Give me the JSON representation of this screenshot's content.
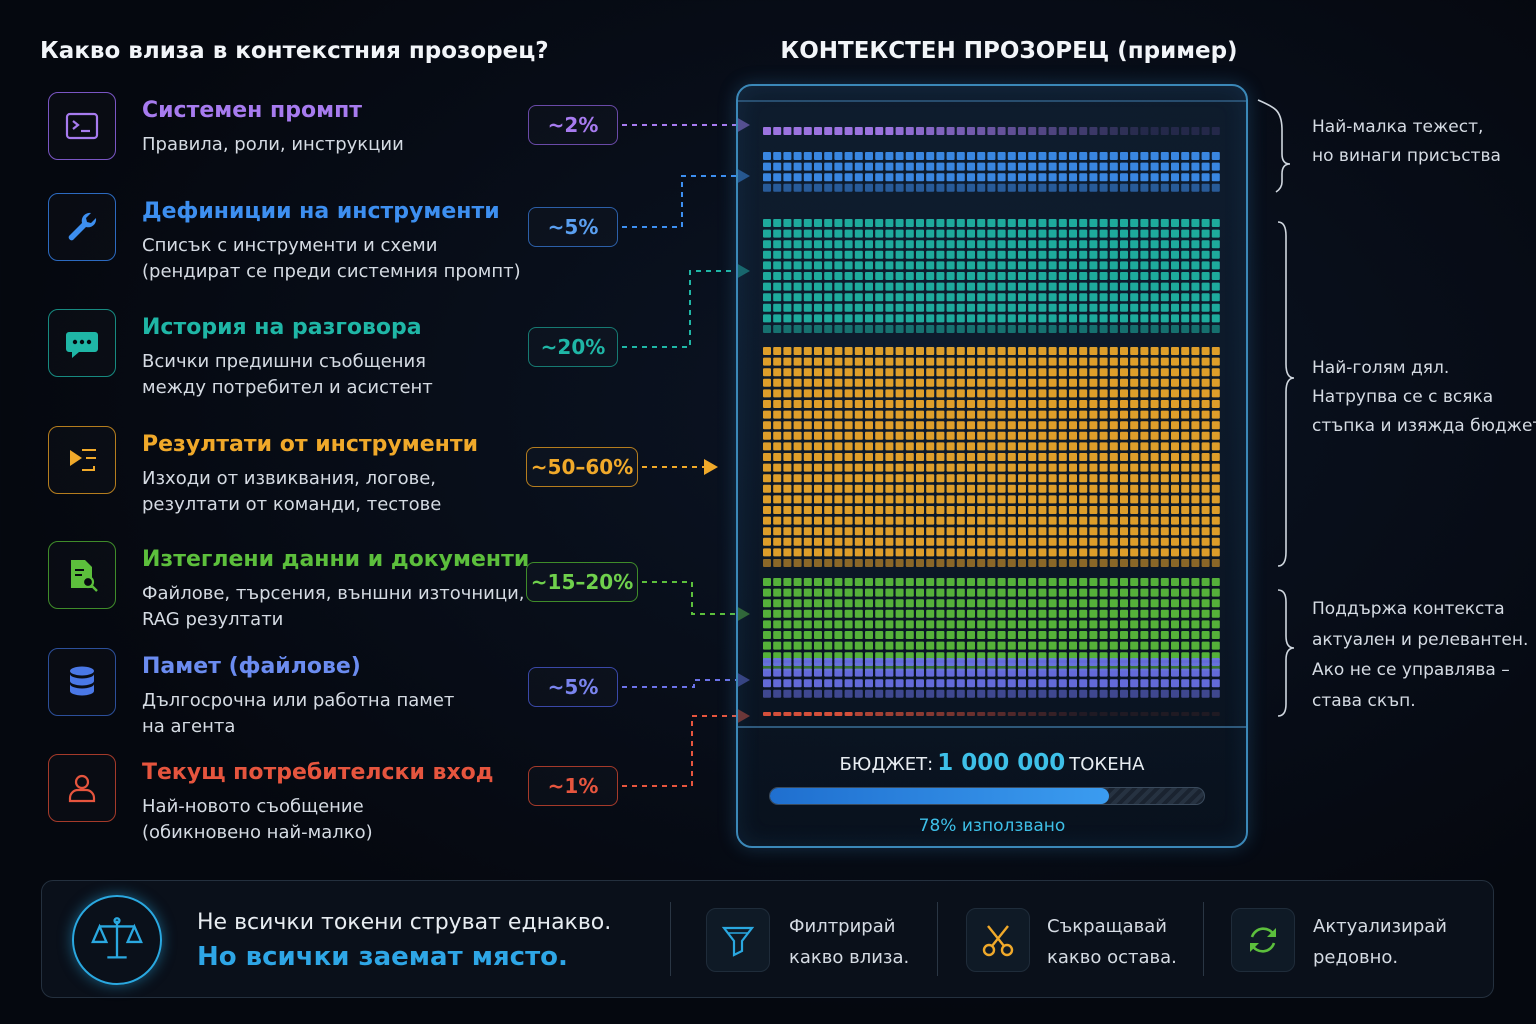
{
  "left_title": "Какво влиза в контекстния прозорец?",
  "window_title": "КОНТЕКСТЕН ПРОЗОРЕЦ (пример)",
  "items": [
    {
      "title": "Системен промпт",
      "desc": [
        "Правила, роли, инструкции"
      ],
      "pct": "~2%",
      "color": "#a77bef",
      "icon": "terminal-icon"
    },
    {
      "title": "Дефиниции на инструменти",
      "desc": [
        "Списък с инструменти и схеми",
        "(рендират се преди системния промпт)"
      ],
      "pct": "~5%",
      "color": "#3d8ff0",
      "icon": "wrench-icon"
    },
    {
      "title": "История на разговора",
      "desc": [
        "Всички предишни съобщения",
        "между потребител и асистент"
      ],
      "pct": "~20%",
      "color": "#1fb6a6",
      "icon": "chat-icon"
    },
    {
      "title": "Резултати от инструменти",
      "desc": [
        "Изходи от извиквания, логове,",
        "резултати от команди, тестове"
      ],
      "pct": "~50–60%",
      "color": "#f0a92a",
      "icon": "output-icon"
    },
    {
      "title": "Изтеглени данни и документи",
      "desc": [
        "Файлове, търсения, външни източници,",
        "RAG резултати"
      ],
      "pct": "~15–20%",
      "color": "#5cbf3c",
      "icon": "document-search-icon"
    },
    {
      "title": "Памет (файлове)",
      "desc": [
        "Дългосрочна или работна памет",
        "на агента"
      ],
      "pct": "~5%",
      "color": "#6b72e8",
      "icon": "database-icon"
    },
    {
      "title": "Текущ потребителски вход",
      "desc": [
        "Най-новото съобщение",
        "(обикновено най-малко)"
      ],
      "pct": "~1%",
      "color": "#e6553e",
      "icon": "user-icon"
    }
  ],
  "notes": [
    [
      "Най-малка тежест,",
      "но винаги присъства"
    ],
    [
      "Най-голям дял.",
      "Натрупва се с всяка",
      "стъпка и изяжда бюджета."
    ],
    [
      "Поддържа контекста",
      "актуален и релевантен.",
      "Ако не се управлява –",
      "става скъп."
    ]
  ],
  "budget": {
    "label": "БЮДЖЕТ:",
    "value": "1 000 000",
    "unit": "ТОКЕНА",
    "used_text": "78% използвано",
    "used_fraction": 0.78
  },
  "footer": {
    "line1": "Не всички токени струват еднакво.",
    "line2": "Но всички заемат място.",
    "actions": [
      {
        "icon": "funnel-icon",
        "lines": [
          "Филтрирай",
          "какво влиза."
        ],
        "color": "#2aa8e0"
      },
      {
        "icon": "scissors-icon",
        "lines": [
          "Съкращавай",
          "какво остава."
        ],
        "color": "#f0a92a"
      },
      {
        "icon": "refresh-icon",
        "lines": [
          "Актуализирай",
          "редовно."
        ],
        "color": "#5cbf3c"
      }
    ]
  }
}
